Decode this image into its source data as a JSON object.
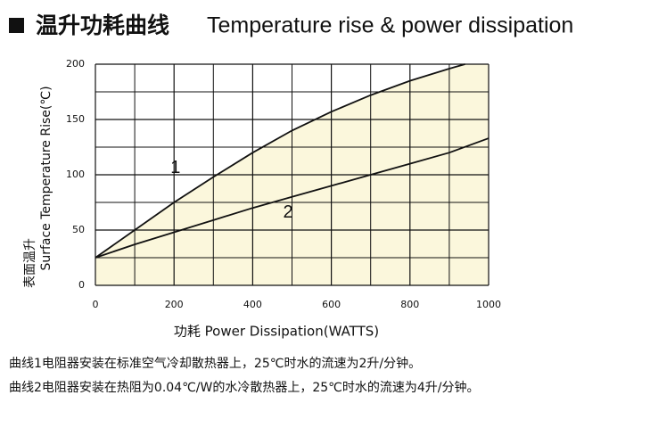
{
  "chart_data": {
    "type": "line",
    "title": "温升功耗曲线",
    "title_en": "Temperature rise & power dissipation",
    "x_label": "功耗  Power Dissipation(WATTS)",
    "y_label_cn": "表面温升",
    "y_label": "Surface Temperature Rise(℃)",
    "xlim": [
      0,
      1000
    ],
    "ylim": [
      0,
      200
    ],
    "xticks": [
      0,
      200,
      400,
      600,
      800,
      1000
    ],
    "yticks": [
      0,
      50,
      100,
      150,
      200
    ],
    "grid": true,
    "fill_color": "#fbf7dc",
    "series": [
      {
        "name": "1",
        "color": "#111111",
        "x": [
          0,
          100,
          200,
          300,
          400,
          500,
          600,
          700,
          800,
          900,
          940
        ],
        "values": [
          25,
          50,
          75,
          98,
          120,
          140,
          157,
          172,
          185,
          196,
          200
        ]
      },
      {
        "name": "2",
        "color": "#111111",
        "x": [
          0,
          100,
          200,
          300,
          400,
          500,
          600,
          700,
          800,
          900,
          1000
        ],
        "values": [
          25,
          37,
          48,
          59,
          70,
          80,
          90,
          100,
          110,
          120,
          133
        ]
      }
    ]
  },
  "notes": [
    "曲线1电阻器安装在标准空气冷却散热器上，25℃时水的流速为2升/分钟。",
    "曲线2电阻器安装在热阻为0.04℃/W的水冷散热器上，25℃时水的流速为4升/分钟。"
  ]
}
